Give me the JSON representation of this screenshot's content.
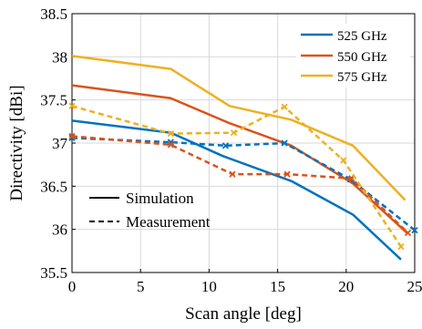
{
  "chart_data": {
    "type": "line",
    "xlabel": "Scan angle [deg]",
    "ylabel": "Directivity [dBi]",
    "xlim": [
      0,
      25
    ],
    "ylim": [
      35.5,
      38.5
    ],
    "xticks": [
      0,
      5,
      10,
      15,
      20,
      25
    ],
    "yticks": [
      35.5,
      36,
      36.5,
      37,
      37.5,
      38,
      38.5
    ],
    "xtick_labels": [
      "0",
      "5",
      "10",
      "15",
      "20",
      "25"
    ],
    "ytick_labels": [
      "35.5",
      "36",
      "36.5",
      "37",
      "37.5",
      "38",
      "38.5"
    ],
    "grid": true,
    "legend_position": "top-right",
    "series": [
      {
        "name": "525 GHz",
        "color": "#0072BD",
        "kind": "simulation",
        "x": [
          0,
          7.2,
          11,
          16,
          20.5,
          24
        ],
        "y": [
          37.26,
          37.12,
          36.85,
          36.56,
          36.17,
          35.65
        ]
      },
      {
        "name": "550 GHz",
        "color": "#D95319",
        "kind": "simulation",
        "x": [
          0,
          7.2,
          11.5,
          16,
          20.5,
          24.5
        ],
        "y": [
          37.67,
          37.52,
          37.23,
          36.97,
          36.53,
          35.95
        ]
      },
      {
        "name": "575 GHz",
        "color": "#EDB120",
        "kind": "simulation",
        "x": [
          0,
          7.2,
          11.5,
          16,
          20.5,
          24.3
        ],
        "y": [
          38.01,
          37.86,
          37.43,
          37.27,
          36.97,
          36.34
        ]
      },
      {
        "name": "525 GHz",
        "color": "#0072BD",
        "kind": "measurement",
        "x": [
          0,
          7.2,
          11.2,
          15.5,
          20.3,
          25
        ],
        "y": [
          37.06,
          37.01,
          36.97,
          37.0,
          36.58,
          35.99
        ]
      },
      {
        "name": "550 GHz",
        "color": "#D95319",
        "kind": "measurement",
        "x": [
          0,
          7.2,
          11.7,
          15.7,
          20.4,
          24.5
        ],
        "y": [
          37.08,
          36.98,
          36.64,
          36.64,
          36.59,
          35.96
        ]
      },
      {
        "name": "575 GHz",
        "color": "#EDB120",
        "kind": "measurement",
        "x": [
          0,
          7.2,
          11.8,
          15.5,
          19.8,
          24
        ],
        "y": [
          37.43,
          37.11,
          37.12,
          37.42,
          36.8,
          35.8
        ]
      }
    ],
    "legend": {
      "entries": [
        "525 GHz",
        "550 GHz",
        "575 GHz"
      ],
      "colors": [
        "#0072BD",
        "#D95319",
        "#EDB120"
      ]
    },
    "line_style_legend": {
      "solid_label": "Simulation",
      "dashed_label": "Measurement"
    }
  }
}
